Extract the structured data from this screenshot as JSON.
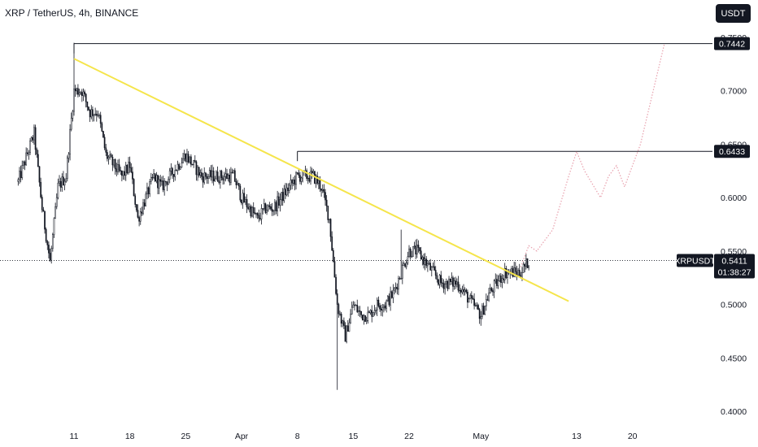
{
  "header": {
    "title": "XRP / TetherUS, 4h, BINANCE",
    "unit_button": "USDT"
  },
  "colors": {
    "candle": "#131722",
    "trendline": "#f5e54b",
    "projection": "#e8a0ad",
    "price_tag": "#131722"
  },
  "chart_data": {
    "type": "candlestick",
    "symbol": "XRPUSDT",
    "ylim": [
      0.395,
      0.755
    ],
    "y_ticks": [
      "0.7500",
      "0.7000",
      "0.6500",
      "0.6000",
      "0.5500",
      "0.5000",
      "0.4500",
      "0.4000"
    ],
    "x_ticks": [
      "11",
      "18",
      "25",
      "Apr",
      "8",
      "15",
      "22",
      "May",
      "13",
      "20"
    ],
    "price_path": [
      [
        "2024-03-04",
        0.615
      ],
      [
        "2024-03-06",
        0.66
      ],
      [
        "2024-03-07",
        0.59
      ],
      [
        "2024-03-08",
        0.54
      ],
      [
        "2024-03-09",
        0.61
      ],
      [
        "2024-03-10",
        0.62
      ],
      [
        "2024-03-11",
        0.7
      ],
      [
        "2024-03-12",
        0.7
      ],
      [
        "2024-03-13",
        0.68
      ],
      [
        "2024-03-14",
        0.68
      ],
      [
        "2024-03-15",
        0.64
      ],
      [
        "2024-03-16",
        0.63
      ],
      [
        "2024-03-17",
        0.62
      ],
      [
        "2024-03-18",
        0.63
      ],
      [
        "2024-03-19",
        0.58
      ],
      [
        "2024-03-20",
        0.6
      ],
      [
        "2024-03-21",
        0.62
      ],
      [
        "2024-03-22",
        0.61
      ],
      [
        "2024-03-23",
        0.62
      ],
      [
        "2024-03-24",
        0.63
      ],
      [
        "2024-03-25",
        0.64
      ],
      [
        "2024-03-26",
        0.63
      ],
      [
        "2024-03-27",
        0.62
      ],
      [
        "2024-03-28",
        0.62
      ],
      [
        "2024-03-29",
        0.62
      ],
      [
        "2024-03-30",
        0.62
      ],
      [
        "2024-03-31",
        0.62
      ],
      [
        "2024-04-01",
        0.6
      ],
      [
        "2024-04-02",
        0.59
      ],
      [
        "2024-04-03",
        0.58
      ],
      [
        "2024-04-04",
        0.59
      ],
      [
        "2024-04-05",
        0.59
      ],
      [
        "2024-04-06",
        0.6
      ],
      [
        "2024-04-07",
        0.61
      ],
      [
        "2024-04-08",
        0.62
      ],
      [
        "2024-04-09",
        0.62
      ],
      [
        "2024-04-10",
        0.62
      ],
      [
        "2024-04-11",
        0.61
      ],
      [
        "2024-04-12",
        0.58
      ],
      [
        "2024-04-13",
        0.5
      ],
      [
        "2024-04-14",
        0.47
      ],
      [
        "2024-04-15",
        0.5
      ],
      [
        "2024-04-16",
        0.49
      ],
      [
        "2024-04-17",
        0.49
      ],
      [
        "2024-04-18",
        0.5
      ],
      [
        "2024-04-19",
        0.5
      ],
      [
        "2024-04-20",
        0.51
      ],
      [
        "2024-04-21",
        0.53
      ],
      [
        "2024-04-22",
        0.55
      ],
      [
        "2024-04-23",
        0.55
      ],
      [
        "2024-04-24",
        0.54
      ],
      [
        "2024-04-25",
        0.53
      ],
      [
        "2024-04-26",
        0.52
      ],
      [
        "2024-04-27",
        0.52
      ],
      [
        "2024-04-28",
        0.52
      ],
      [
        "2024-04-29",
        0.51
      ],
      [
        "2024-04-30",
        0.5
      ],
      [
        "2024-05-01",
        0.49
      ],
      [
        "2024-05-02",
        0.51
      ],
      [
        "2024-05-03",
        0.52
      ],
      [
        "2024-05-04",
        0.53
      ],
      [
        "2024-05-05",
        0.53
      ],
      [
        "2024-05-06",
        0.53
      ],
      [
        "2024-05-07",
        0.5411
      ]
    ],
    "spikes": [
      [
        "2024-03-08",
        0.54
      ],
      [
        "2024-03-11",
        0.745
      ],
      [
        "2024-04-13",
        0.42
      ],
      [
        "2024-04-21",
        0.57
      ],
      [
        "2024-05-01",
        0.48
      ]
    ],
    "horizontal_levels": [
      {
        "from": "2024-03-11",
        "price": 0.7442,
        "label": "0.7442"
      },
      {
        "from": "2024-04-08",
        "price": 0.6433,
        "label": "0.6433"
      }
    ],
    "trendline": {
      "from": [
        "2024-03-11",
        0.73
      ],
      "to": [
        "2024-05-12",
        0.503
      ]
    },
    "projection": [
      [
        "2024-05-06",
        0.535
      ],
      [
        "2024-05-07",
        0.555
      ],
      [
        "2024-05-08",
        0.55
      ],
      [
        "2024-05-10",
        0.57
      ],
      [
        "2024-05-12",
        0.62
      ],
      [
        "2024-05-13",
        0.643
      ],
      [
        "2024-05-14",
        0.625
      ],
      [
        "2024-05-16",
        0.6
      ],
      [
        "2024-05-17",
        0.62
      ],
      [
        "2024-05-18",
        0.63
      ],
      [
        "2024-05-19",
        0.61
      ],
      [
        "2024-05-21",
        0.65
      ],
      [
        "2024-05-24",
        0.744
      ]
    ],
    "last_price": {
      "label": "XRPUSDT",
      "value": "0.5411",
      "countdown": "01:38:27",
      "price": 0.5411
    }
  }
}
